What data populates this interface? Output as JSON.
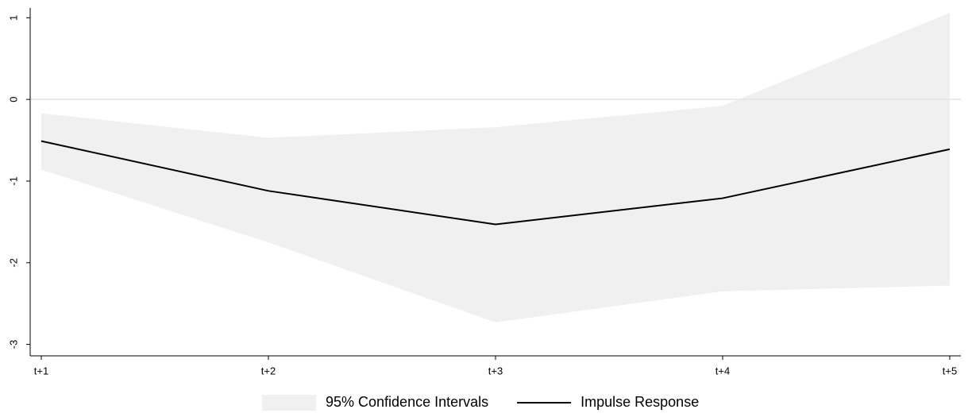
{
  "chart_data": {
    "type": "line",
    "categories": [
      "t+1",
      "t+2",
      "t+3",
      "t+4",
      "t+5"
    ],
    "series": [
      {
        "name": "95% Confidence Intervals",
        "color": "#f0f0f0",
        "kind": "band",
        "upper": [
          -0.17,
          -0.47,
          -0.34,
          -0.08,
          1.06
        ],
        "lower": [
          -0.86,
          -1.75,
          -2.73,
          -2.35,
          -2.28
        ]
      },
      {
        "name": "Impulse Response",
        "color": "#000000",
        "values": [
          -0.51,
          -1.12,
          -1.53,
          -1.21,
          -0.61
        ]
      }
    ],
    "ylim": [
      -3.14,
      1.12
    ],
    "yticks": [
      -3,
      -2,
      -1,
      0,
      1
    ],
    "reference_line": 0,
    "legend": "bottom"
  }
}
